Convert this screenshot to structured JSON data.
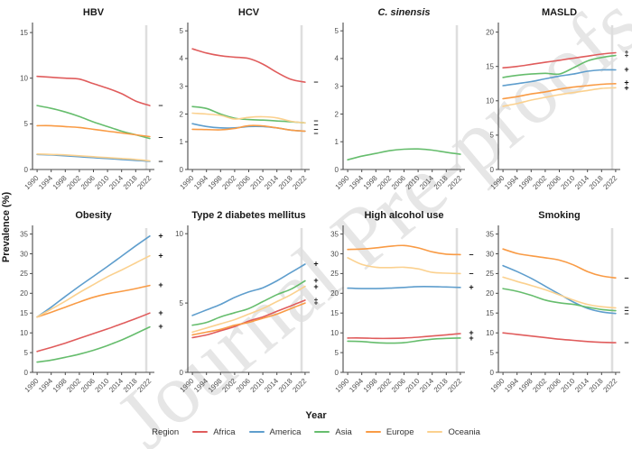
{
  "figure": {
    "y_axis_label": "Prevalence (%)",
    "x_axis_label": "Year",
    "watermark": "Journal Pre-proofs"
  },
  "legend": {
    "title": "Region",
    "position": "bottom",
    "entries": [
      {
        "label": "Africa",
        "color": "#e05c5c"
      },
      {
        "label": "America",
        "color": "#5f9ecd"
      },
      {
        "label": "Asia",
        "color": "#66bd6d"
      },
      {
        "label": "Europe",
        "color": "#f99b45"
      },
      {
        "label": "Oceania",
        "color": "#fbd18f"
      }
    ]
  },
  "chart_data": [
    {
      "type": "line",
      "title": "HBV",
      "title_italic": false,
      "ylim": [
        0,
        15.8
      ],
      "yticks": [
        0,
        5,
        10,
        15
      ],
      "x": [
        1990,
        1994,
        1998,
        2002,
        2006,
        2010,
        2014,
        2018,
        2022
      ],
      "xticks": [
        1990,
        1994,
        1998,
        2002,
        2006,
        2010,
        2014,
        2018,
        2022
      ],
      "ref_line_x": 2021,
      "grid": false,
      "series": [
        {
          "name": "Africa",
          "values": [
            10.2,
            10.1,
            10.0,
            9.9,
            9.4,
            8.9,
            8.3,
            7.5,
            7.0
          ]
        },
        {
          "name": "America",
          "values": [
            1.65,
            1.6,
            1.5,
            1.4,
            1.3,
            1.2,
            1.1,
            1.0,
            0.9
          ]
        },
        {
          "name": "Asia",
          "values": [
            7.0,
            6.7,
            6.3,
            5.8,
            5.2,
            4.7,
            4.2,
            3.8,
            3.4
          ]
        },
        {
          "name": "Europe",
          "values": [
            4.8,
            4.8,
            4.7,
            4.6,
            4.4,
            4.2,
            4.0,
            3.8,
            3.6
          ]
        },
        {
          "name": "Oceania",
          "values": [
            1.7,
            1.65,
            1.6,
            1.5,
            1.4,
            1.3,
            1.2,
            1.1,
            0.95
          ]
        }
      ],
      "end_markers": [
        {
          "symbol": "–",
          "y": 7.0
        },
        {
          "symbol": "–",
          "y": 3.5
        },
        {
          "symbol": "–",
          "y": 0.92
        }
      ]
    },
    {
      "type": "line",
      "title": "HCV",
      "title_italic": false,
      "ylim": [
        0,
        5.2
      ],
      "yticks": [
        0,
        1,
        2,
        3,
        4,
        5
      ],
      "x": [
        1990,
        1994,
        1998,
        2002,
        2006,
        2010,
        2014,
        2018,
        2022
      ],
      "xticks": [
        1990,
        1994,
        1998,
        2002,
        2006,
        2010,
        2014,
        2018,
        2022
      ],
      "ref_line_x": 2021,
      "grid": false,
      "series": [
        {
          "name": "Africa",
          "values": [
            4.35,
            4.2,
            4.1,
            4.05,
            4.0,
            3.8,
            3.5,
            3.25,
            3.15
          ]
        },
        {
          "name": "America",
          "values": [
            1.65,
            1.55,
            1.5,
            1.5,
            1.55,
            1.55,
            1.5,
            1.42,
            1.38
          ]
        },
        {
          "name": "Asia",
          "values": [
            2.27,
            2.2,
            2.0,
            1.85,
            1.8,
            1.78,
            1.75,
            1.72,
            1.68
          ]
        },
        {
          "name": "Europe",
          "values": [
            1.45,
            1.44,
            1.43,
            1.48,
            1.58,
            1.57,
            1.5,
            1.42,
            1.38
          ]
        },
        {
          "name": "Oceania",
          "values": [
            2.03,
            2.0,
            1.95,
            1.82,
            1.88,
            1.9,
            1.86,
            1.74,
            1.68
          ]
        }
      ],
      "end_markers": [
        {
          "symbol": "–",
          "y": 3.15
        },
        {
          "symbol": "–",
          "y": 1.76
        },
        {
          "symbol": "–",
          "y": 1.62
        },
        {
          "symbol": "–",
          "y": 1.45
        },
        {
          "symbol": "–",
          "y": 1.31
        }
      ]
    },
    {
      "type": "line",
      "title": "C. sinensis",
      "title_italic": true,
      "ylim": [
        0,
        5.2
      ],
      "yticks": [
        0,
        1,
        2,
        3,
        4,
        5
      ],
      "x": [
        1990,
        1994,
        1998,
        2002,
        2006,
        2010,
        2014,
        2018,
        2022
      ],
      "xticks": [
        1990,
        1994,
        1998,
        2002,
        2006,
        2010,
        2014,
        2018,
        2022
      ],
      "ref_line_x": 2021,
      "grid": false,
      "series": [
        {
          "name": "Asia",
          "values": [
            0.35,
            0.48,
            0.58,
            0.68,
            0.73,
            0.74,
            0.7,
            0.62,
            0.55
          ]
        }
      ],
      "end_markers": []
    },
    {
      "type": "line",
      "title": "MASLD",
      "title_italic": false,
      "ylim": [
        0,
        21
      ],
      "yticks": [
        0,
        5,
        10,
        15,
        20
      ],
      "x": [
        1990,
        1994,
        1998,
        2002,
        2006,
        2010,
        2014,
        2018,
        2022
      ],
      "xticks": [
        1990,
        1994,
        1998,
        2002,
        2006,
        2010,
        2014,
        2018,
        2022
      ],
      "ref_line_x": 2021,
      "grid": false,
      "series": [
        {
          "name": "Africa",
          "values": [
            14.8,
            15.0,
            15.3,
            15.6,
            15.9,
            16.2,
            16.5,
            16.8,
            17.0
          ]
        },
        {
          "name": "America",
          "values": [
            12.2,
            12.5,
            12.8,
            13.2,
            13.6,
            13.9,
            14.3,
            14.5,
            14.5
          ]
        },
        {
          "name": "Asia",
          "values": [
            13.4,
            13.7,
            13.9,
            14.0,
            13.9,
            14.8,
            15.8,
            16.3,
            16.6
          ]
        },
        {
          "name": "Europe",
          "values": [
            10.3,
            10.6,
            11.0,
            11.3,
            11.7,
            12.0,
            12.2,
            12.4,
            12.5
          ]
        },
        {
          "name": "Oceania",
          "values": [
            9.2,
            9.6,
            10.1,
            10.5,
            10.9,
            11.2,
            11.5,
            11.8,
            11.9
          ]
        }
      ],
      "end_markers": [
        {
          "symbol": "‡",
          "y": 16.8
        },
        {
          "symbol": "+",
          "y": 14.5
        },
        {
          "symbol": "+",
          "y": 12.6
        },
        {
          "symbol": "+",
          "y": 11.8
        }
      ]
    },
    {
      "type": "line",
      "title": "Obesity",
      "title_italic": false,
      "ylim": [
        0,
        36.5
      ],
      "yticks": [
        0,
        5,
        10,
        15,
        20,
        25,
        30,
        35
      ],
      "x": [
        1990,
        1994,
        1998,
        2002,
        2006,
        2010,
        2014,
        2018,
        2022
      ],
      "xticks": [
        1990,
        1994,
        1998,
        2002,
        2006,
        2010,
        2014,
        2018,
        2022
      ],
      "ref_line_x": 2021,
      "grid": false,
      "series": [
        {
          "name": "Africa",
          "values": [
            5.3,
            6.3,
            7.4,
            8.6,
            9.8,
            11.0,
            12.3,
            13.6,
            15.0
          ]
        },
        {
          "name": "America",
          "values": [
            14.0,
            16.5,
            19.2,
            21.8,
            24.3,
            26.8,
            29.4,
            32.0,
            34.5
          ]
        },
        {
          "name": "Asia",
          "values": [
            2.6,
            3.1,
            3.8,
            4.6,
            5.6,
            6.8,
            8.2,
            9.8,
            11.5
          ]
        },
        {
          "name": "Europe",
          "values": [
            14.0,
            15.2,
            16.5,
            17.8,
            19.0,
            19.9,
            20.5,
            21.2,
            22.0
          ]
        },
        {
          "name": "Oceania",
          "values": [
            14.0,
            16.0,
            18.0,
            20.2,
            22.2,
            24.2,
            25.9,
            27.7,
            29.5
          ]
        }
      ],
      "end_markers": [
        {
          "symbol": "+",
          "y": 34.5
        },
        {
          "symbol": "+",
          "y": 29.5
        },
        {
          "symbol": "+",
          "y": 22.0
        },
        {
          "symbol": "+",
          "y": 15.0
        },
        {
          "symbol": "+",
          "y": 11.5
        }
      ]
    },
    {
      "type": "line",
      "title": "Type 2 diabetes mellitus",
      "title_italic": false,
      "ylim": [
        0,
        10.4
      ],
      "yticks": [
        0,
        5,
        10
      ],
      "x": [
        1990,
        1994,
        1998,
        2002,
        2006,
        2010,
        2014,
        2018,
        2022
      ],
      "xticks": [
        1990,
        1994,
        1998,
        2002,
        2006,
        2010,
        2014,
        2018,
        2022
      ],
      "ref_line_x": 2021,
      "grid": false,
      "series": [
        {
          "name": "Africa",
          "values": [
            2.5,
            2.7,
            3.0,
            3.3,
            3.7,
            4.0,
            4.4,
            4.8,
            5.2
          ]
        },
        {
          "name": "America",
          "values": [
            4.1,
            4.5,
            4.9,
            5.4,
            5.8,
            6.1,
            6.6,
            7.2,
            7.8
          ]
        },
        {
          "name": "Asia",
          "values": [
            3.4,
            3.6,
            4.0,
            4.3,
            4.6,
            5.1,
            5.6,
            6.0,
            6.6
          ]
        },
        {
          "name": "Europe",
          "values": [
            2.7,
            2.9,
            3.1,
            3.4,
            3.6,
            3.9,
            4.2,
            4.6,
            5.0
          ]
        },
        {
          "name": "Oceania",
          "values": [
            2.9,
            3.2,
            3.5,
            3.8,
            4.2,
            4.6,
            5.1,
            5.6,
            6.2
          ]
        }
      ],
      "end_markers": [
        {
          "symbol": "+",
          "y": 7.8
        },
        {
          "symbol": "+",
          "y": 6.6
        },
        {
          "symbol": "+",
          "y": 6.15
        },
        {
          "symbol": "‡",
          "y": 5.1
        }
      ]
    },
    {
      "type": "line",
      "title": "High alcohol use",
      "title_italic": false,
      "ylim": [
        0,
        36.5
      ],
      "yticks": [
        0,
        5,
        10,
        15,
        20,
        25,
        30,
        35
      ],
      "x": [
        1990,
        1994,
        1998,
        2002,
        2006,
        2010,
        2014,
        2018,
        2022
      ],
      "xticks": [
        1990,
        1994,
        1998,
        2002,
        2006,
        2010,
        2014,
        2018,
        2022
      ],
      "ref_line_x": 2021,
      "grid": false,
      "series": [
        {
          "name": "Africa",
          "values": [
            8.7,
            8.7,
            8.6,
            8.6,
            8.7,
            8.9,
            9.2,
            9.5,
            9.8
          ]
        },
        {
          "name": "America",
          "values": [
            21.3,
            21.2,
            21.2,
            21.3,
            21.5,
            21.7,
            21.7,
            21.6,
            21.5
          ]
        },
        {
          "name": "Asia",
          "values": [
            7.9,
            7.8,
            7.5,
            7.4,
            7.5,
            8.0,
            8.4,
            8.6,
            8.7
          ]
        },
        {
          "name": "Europe",
          "values": [
            31.1,
            31.2,
            31.5,
            31.9,
            32.1,
            31.5,
            30.5,
            29.9,
            29.8
          ]
        },
        {
          "name": "Oceania",
          "values": [
            29.0,
            27.3,
            26.6,
            26.5,
            26.6,
            26.2,
            25.3,
            25.1,
            25.0
          ]
        }
      ],
      "end_markers": [
        {
          "symbol": "–",
          "y": 29.8
        },
        {
          "symbol": "–",
          "y": 25.0
        },
        {
          "symbol": "+",
          "y": 21.5
        },
        {
          "symbol": "+",
          "y": 9.9
        },
        {
          "symbol": "+",
          "y": 8.6
        }
      ]
    },
    {
      "type": "line",
      "title": "Smoking",
      "title_italic": false,
      "ylim": [
        0,
        36.5
      ],
      "yticks": [
        0,
        5,
        10,
        15,
        20,
        25,
        30,
        35
      ],
      "x": [
        1990,
        1994,
        1998,
        2002,
        2006,
        2010,
        2014,
        2018,
        2022
      ],
      "xticks": [
        1990,
        1994,
        1998,
        2002,
        2006,
        2010,
        2014,
        2018,
        2022
      ],
      "ref_line_x": 2021,
      "grid": false,
      "series": [
        {
          "name": "Africa",
          "values": [
            10.0,
            9.6,
            9.2,
            8.8,
            8.4,
            8.1,
            7.8,
            7.6,
            7.5
          ]
        },
        {
          "name": "America",
          "values": [
            27.0,
            25.5,
            23.8,
            21.8,
            19.8,
            17.8,
            16.2,
            15.3,
            14.9
          ]
        },
        {
          "name": "Asia",
          "values": [
            21.2,
            20.5,
            19.5,
            18.3,
            17.6,
            17.2,
            16.5,
            15.9,
            15.6
          ]
        },
        {
          "name": "Europe",
          "values": [
            31.2,
            30.1,
            29.5,
            29.0,
            28.4,
            27.2,
            25.5,
            24.4,
            23.9
          ]
        },
        {
          "name": "Oceania",
          "values": [
            24.1,
            23.0,
            22.0,
            20.9,
            19.6,
            18.3,
            17.2,
            16.6,
            16.3
          ]
        }
      ],
      "end_markers": [
        {
          "symbol": "–",
          "y": 23.9
        },
        {
          "symbol": "–",
          "y": 16.4
        },
        {
          "symbol": "–",
          "y": 15.6
        },
        {
          "symbol": "–",
          "y": 14.8
        },
        {
          "symbol": "–",
          "y": 7.5
        }
      ]
    }
  ]
}
